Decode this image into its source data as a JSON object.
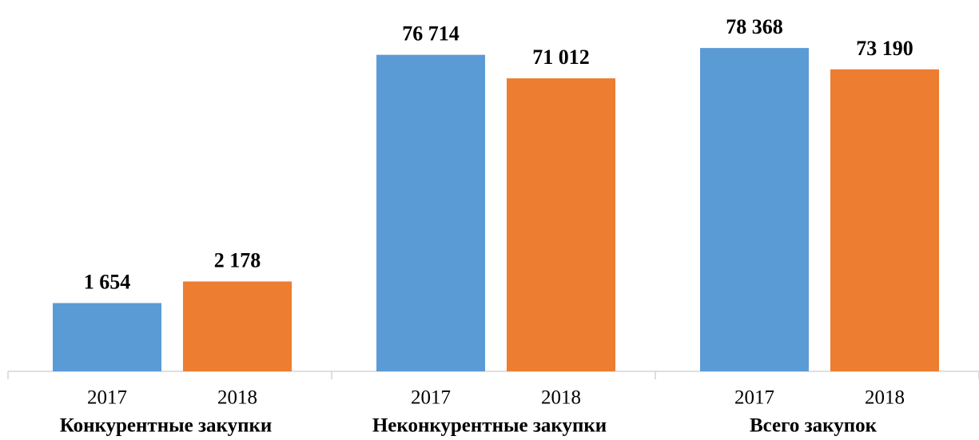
{
  "chart_data": {
    "type": "bar",
    "colors": [
      "#5b9bd5",
      "#ed7d31"
    ],
    "ylim": [
      0,
      90000
    ],
    "y2lim": [
      0,
      9000
    ],
    "groups": [
      {
        "name": "Конкурентные закупки",
        "categories": [
          "2017",
          "2018"
        ],
        "values": [
          1654,
          2178
        ],
        "value_labels": [
          "1 654",
          "2 178"
        ],
        "axis": "y2"
      },
      {
        "name": "Неконкурентные закупки",
        "categories": [
          "2017",
          "2018"
        ],
        "values": [
          76714,
          71012
        ],
        "value_labels": [
          "76 714",
          "71 012"
        ]
      },
      {
        "name": "Всего закупок",
        "categories": [
          "2017",
          "2018"
        ],
        "values": [
          78368,
          73190
        ],
        "value_labels": [
          "78 368",
          "73 190"
        ]
      }
    ]
  }
}
